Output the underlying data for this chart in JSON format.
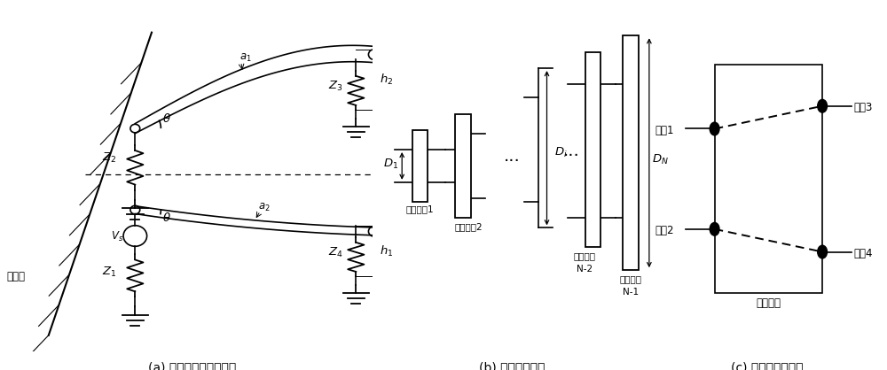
{
  "fig_width": 10.0,
  "fig_height": 4.18,
  "bg_color": "#ffffff",
  "caption_a": "(a) 非平行传输线示意图",
  "caption_b": "(b) 离散化示意图",
  "caption_c": "(c) 理想节点示意图"
}
